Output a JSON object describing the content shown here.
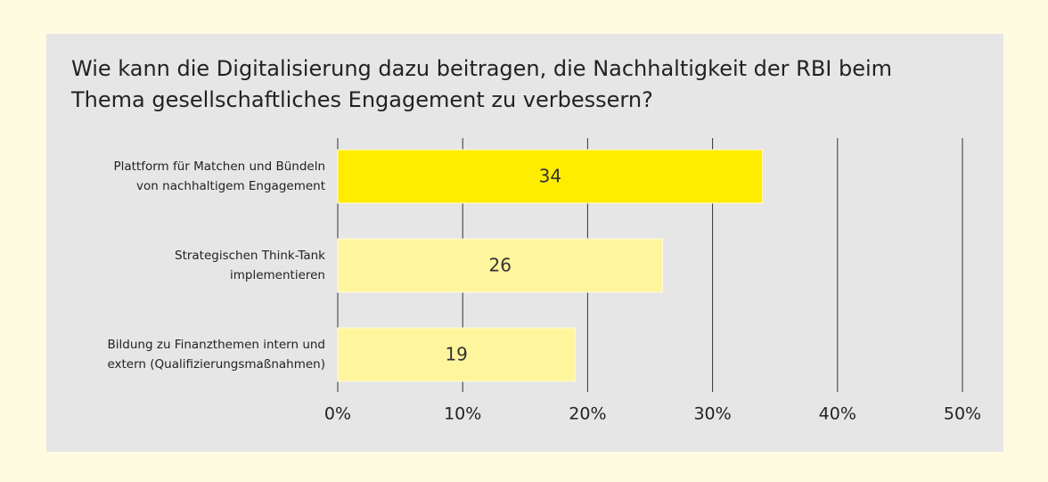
{
  "chart_data": {
    "type": "bar",
    "orientation": "horizontal",
    "title": [
      "Wie kann die Digitalisierung dazu beitragen, die Nachhaltigkeit der RBI beim",
      "Thema gesellschaftliches Engagement zu verbessern?"
    ],
    "categories": [
      [
        "Plattform für Matchen und Bündeln",
        "von nachhaltigem Engagement"
      ],
      [
        "Strategischen Think-Tank",
        "implementieren"
      ],
      [
        "Bildung zu Finanzthemen intern und",
        "extern (Qualifizierungsmaßnahmen)"
      ]
    ],
    "values": [
      34,
      26,
      19
    ],
    "colors": [
      "#ffed00",
      "#fff59d",
      "#fff59d"
    ],
    "xlim": [
      0,
      50
    ],
    "xticks": [
      {
        "value": 0,
        "label": "0%"
      },
      {
        "value": 10,
        "label": "10%"
      },
      {
        "value": 20,
        "label": "20%"
      },
      {
        "value": 30,
        "label": "30%"
      },
      {
        "value": 40,
        "label": "40%"
      },
      {
        "value": 50,
        "label": "50%"
      }
    ],
    "grid": true
  }
}
